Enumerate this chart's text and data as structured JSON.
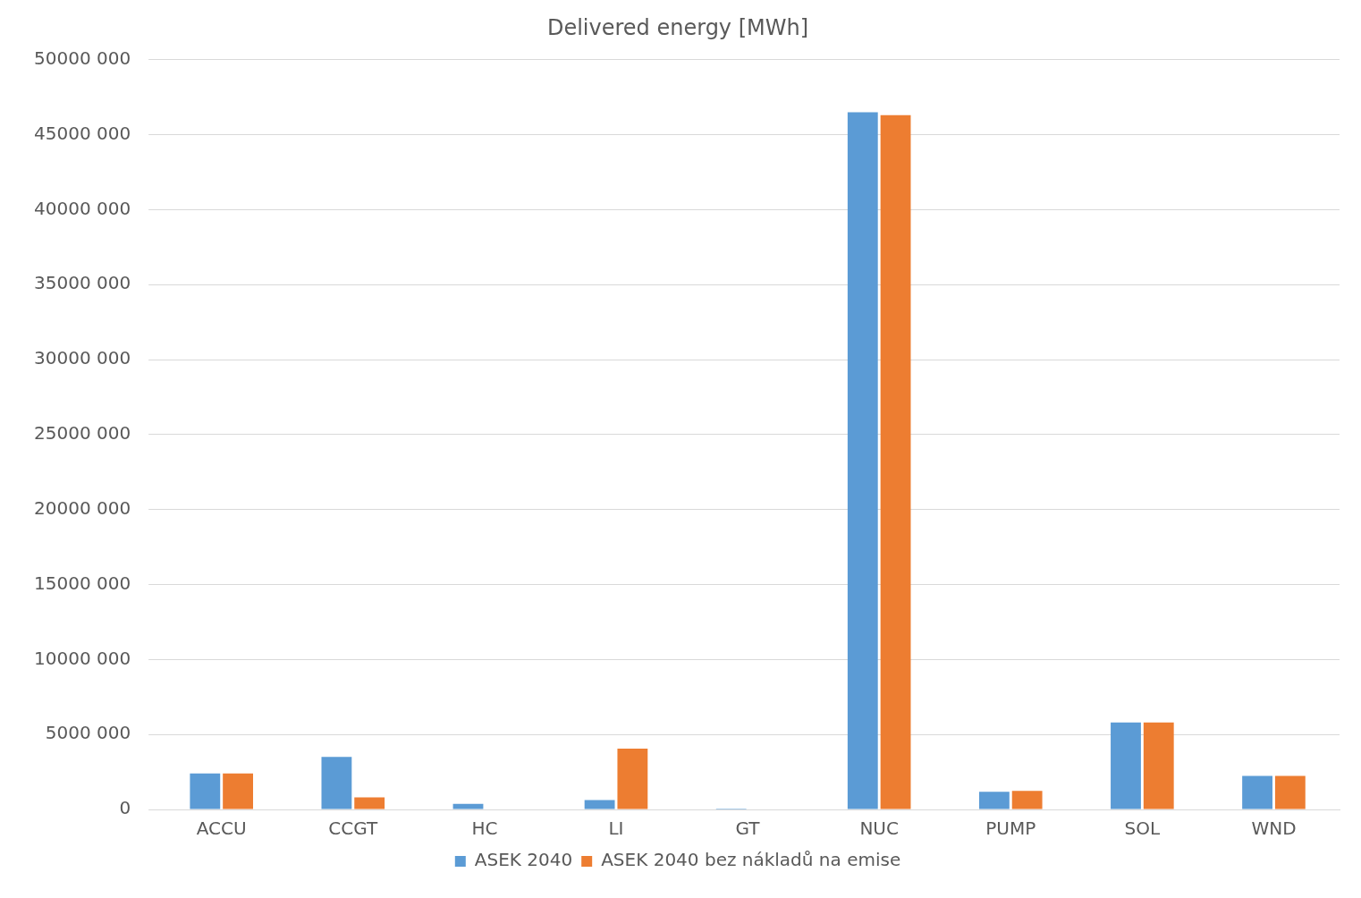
{
  "chart_data": {
    "type": "bar",
    "title": "Delivered energy [MWh]",
    "categories": [
      "ACCU",
      "CCGT",
      "HC",
      "LI",
      "GT",
      "NUC",
      "PUMP",
      "SOL",
      "WND"
    ],
    "series": [
      {
        "name": "ASEK 2040",
        "color": "#5b9bd5",
        "values": [
          2400000,
          3500000,
          370000,
          620000,
          60000,
          46500000,
          1180000,
          5800000,
          2240000
        ]
      },
      {
        "name": "ASEK 2040 bez nákladů na emise",
        "color": "#ed7d31",
        "values": [
          2400000,
          800000,
          0,
          4050000,
          0,
          46300000,
          1240000,
          5800000,
          2240000
        ]
      }
    ],
    "ylim": [
      0,
      50000000
    ],
    "yticks": [
      {
        "value": 0,
        "label": "0"
      },
      {
        "value": 5000000,
        "label": "5000 000"
      },
      {
        "value": 10000000,
        "label": "10000 000"
      },
      {
        "value": 15000000,
        "label": "15000 000"
      },
      {
        "value": 20000000,
        "label": "20000 000"
      },
      {
        "value": 25000000,
        "label": "25000 000"
      },
      {
        "value": 30000000,
        "label": "30000 000"
      },
      {
        "value": 35000000,
        "label": "35000 000"
      },
      {
        "value": 40000000,
        "label": "40000 000"
      },
      {
        "value": 45000000,
        "label": "45000 000"
      },
      {
        "value": 50000000,
        "label": "50000 000"
      }
    ],
    "grid": "y",
    "legend": "bottom"
  }
}
